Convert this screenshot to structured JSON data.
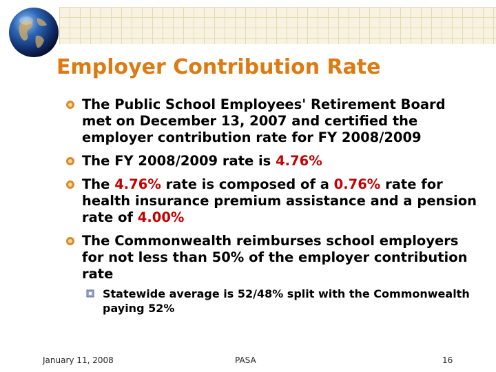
{
  "slide": {
    "title": "Employer Contribution Rate",
    "bullets": [
      {
        "text": "The Public School Employees' Retirement Board met on December 13, 2007 and certified the employer contribution rate for FY 2008/2009"
      },
      {
        "pre": "The FY 2008/2009 rate is ",
        "hl1": "4.76%"
      },
      {
        "pre": "The ",
        "hl1": "4.76%",
        "mid": " rate is composed of a ",
        "hl2": "0.76%",
        "post": " rate for health insurance premium assistance and a pension rate of ",
        "hl3": "4.00%"
      },
      {
        "text": "The Commonwealth reimburses school employers for not less than 50% of the employer contribution rate"
      }
    ],
    "sub_bullet": "Statewide average is 52/48% split with the Commonwealth paying 52%"
  },
  "footer": {
    "date": "January 11, 2008",
    "org": "PASA",
    "page_number": "16"
  },
  "colors": {
    "title": "#dd7a12",
    "highlight": "#c40000",
    "bullet_mark": "#d88a2a"
  },
  "icons": {
    "header": "globe-icon",
    "bullet": "disc-bullet-icon",
    "sub_bullet": "square-bullet-icon"
  }
}
